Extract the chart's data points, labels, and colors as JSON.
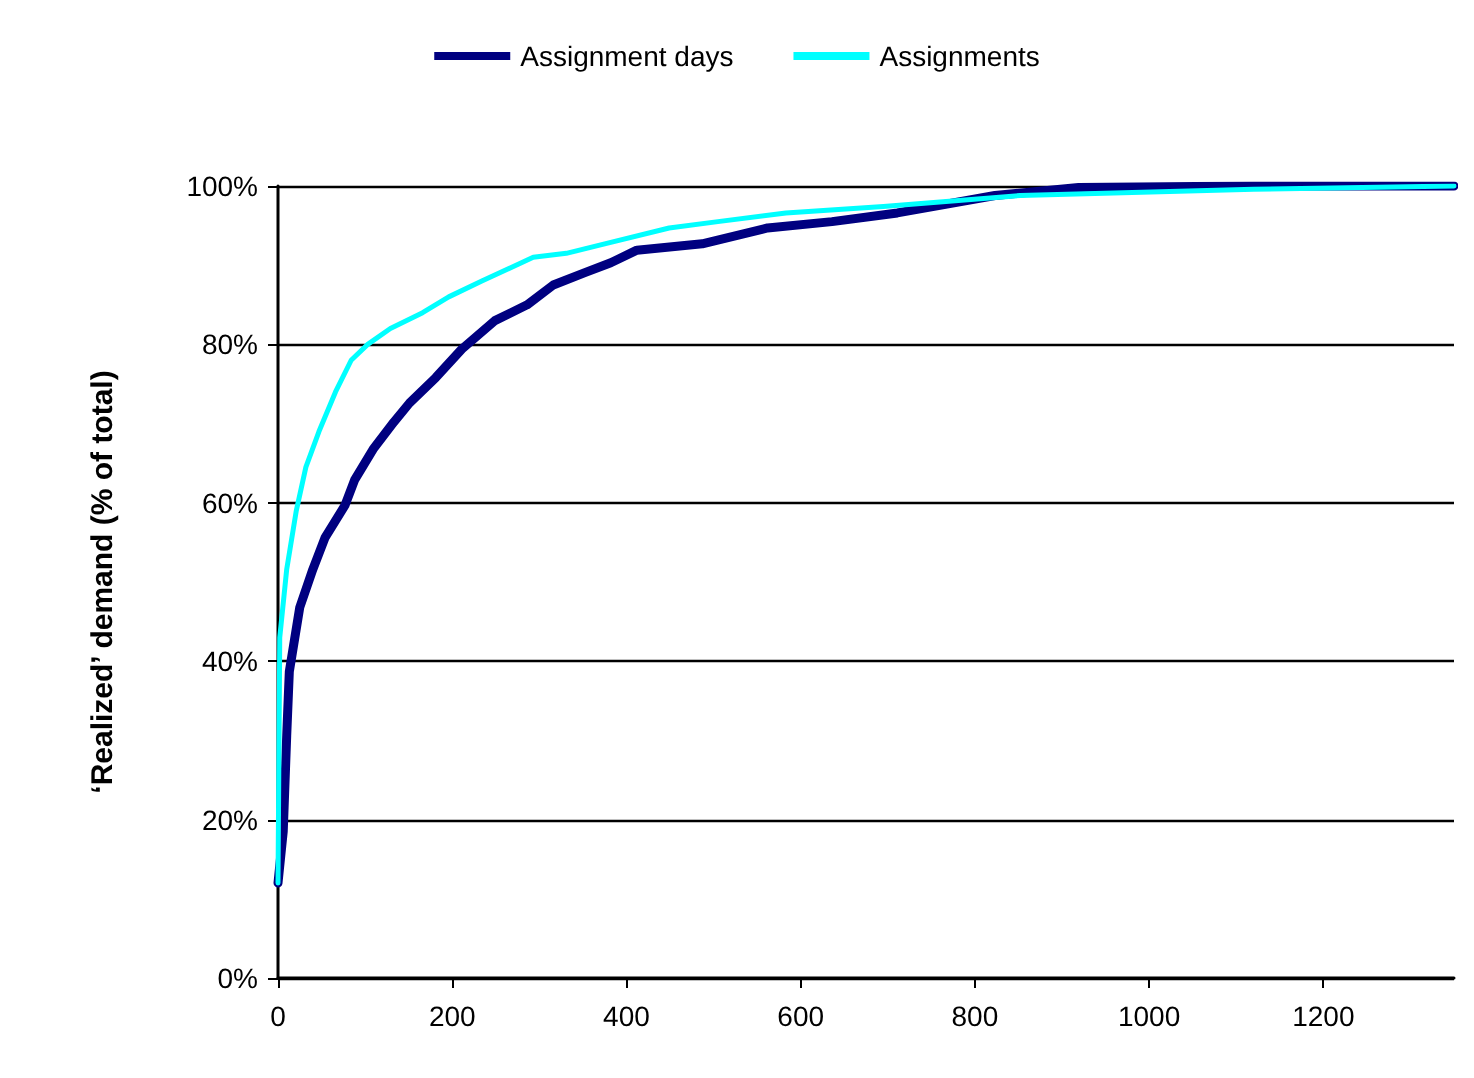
{
  "chart_data": {
    "type": "line",
    "ylabel": "‘Realized’ demand (% of total)",
    "series": [
      {
        "name": "Assignment days",
        "color": "#000080",
        "x": [
          0,
          6,
          10,
          13,
          25,
          40,
          54,
          77,
          88,
          110,
          133,
          151,
          181,
          211,
          249,
          286,
          316,
          353,
          382,
          412,
          487,
          562,
          636,
          711,
          823,
          919,
          1120,
          1350
        ],
        "values": [
          12,
          18.5,
          30.6,
          38.7,
          46.8,
          51.6,
          55.6,
          59.7,
          62.9,
          66.9,
          70.2,
          72.6,
          75.8,
          79.4,
          83,
          85,
          87.5,
          89.1,
          90.3,
          91.9,
          92.7,
          94.7,
          95.5,
          96.6,
          98.8,
          99.8,
          100,
          100
        ]
      },
      {
        "name": "Assignments",
        "color": "#00ffff",
        "x": [
          0,
          2,
          10,
          21,
          32,
          47,
          66,
          84,
          103,
          129,
          166,
          196,
          234,
          293,
          331,
          375,
          449,
          505,
          583,
          695,
          852,
          1120,
          1350
        ],
        "values": [
          12,
          43,
          51.6,
          59,
          64.5,
          69,
          74,
          78,
          80,
          82,
          84,
          86,
          88,
          91,
          91.5,
          92.7,
          94.7,
          95.5,
          96.6,
          97.4,
          98.8,
          99.6,
          100
        ]
      }
    ],
    "xlim": [
      0,
      1350
    ],
    "xticks": [
      0,
      200,
      400,
      600,
      800,
      1000,
      1200
    ],
    "ylim": [
      0,
      100
    ],
    "yticks": [
      {
        "value": 0,
        "label": "0%"
      },
      {
        "value": 20,
        "label": "20%"
      },
      {
        "value": 40,
        "label": "40%"
      },
      {
        "value": 60,
        "label": "60%"
      },
      {
        "value": 80,
        "label": "80%"
      },
      {
        "value": 100,
        "label": "100%"
      }
    ],
    "grid": "y",
    "legend": "top",
    "marker": "none",
    "line_style": "solid"
  }
}
